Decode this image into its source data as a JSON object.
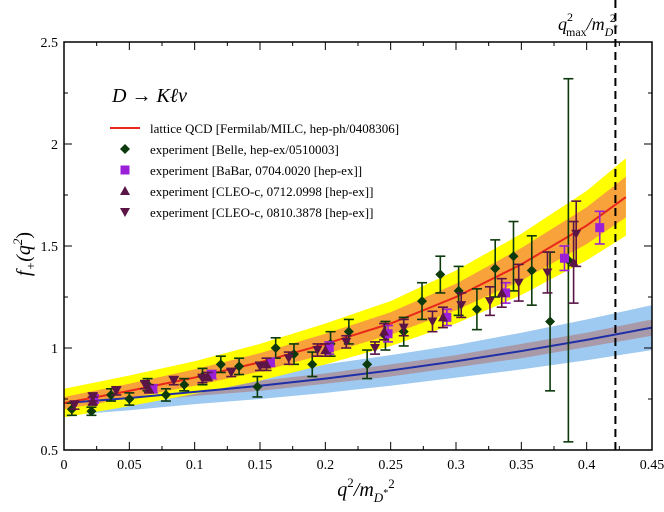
{
  "chart_data": {
    "type": "scatter",
    "title": "D → Kℓν",
    "xlim": [
      0,
      0.45
    ],
    "ylim": [
      0.5,
      2.5
    ],
    "x_ticks": [
      0,
      0.05,
      0.1,
      0.15,
      0.2,
      0.25,
      0.3,
      0.35,
      0.4,
      0.45
    ],
    "x_tick_labels": [
      "0",
      "0.05",
      "0.1",
      "0.15",
      "0.2",
      "0.25",
      "0.3",
      "0.35",
      "0.4",
      "0.45"
    ],
    "y_ticks": [
      0.5,
      1,
      1.5,
      2,
      2.5
    ],
    "y_tick_labels": [
      "0.5",
      "1",
      "1.5",
      "2",
      "2.5"
    ],
    "xlabel": {
      "main": "q",
      "sup": "2",
      "sep": "/m",
      "sub": "D",
      "subsup": "*",
      "sup2": "2"
    },
    "ylabel": {
      "main": "f",
      "sub": "+",
      "arg": "(q",
      "sup": "2",
      "close": ")"
    },
    "vline": {
      "x": 0.422,
      "label_main": "q",
      "label_sup": "2",
      "label_sub": "max",
      "label_sep": "/m",
      "label_sub2": "D",
      "label_subsup": "*",
      "label_sup2": "2"
    },
    "lattice": {
      "name": "lattice QCD [Fermilab/MILC, hep-ph/0408306]",
      "x": [
        0,
        0.05,
        0.1,
        0.15,
        0.2,
        0.25,
        0.3,
        0.35,
        0.4,
        0.43
      ],
      "y": [
        0.73,
        0.79,
        0.855,
        0.93,
        1.02,
        1.12,
        1.25,
        1.41,
        1.6,
        1.74
      ],
      "inner_band": [
        0.03,
        0.035,
        0.04,
        0.045,
        0.05,
        0.055,
        0.065,
        0.08,
        0.09,
        0.1
      ],
      "outer_band": [
        0.07,
        0.075,
        0.08,
        0.09,
        0.1,
        0.11,
        0.13,
        0.15,
        0.17,
        0.19
      ]
    },
    "blue_curve": {
      "x": [
        0,
        0.05,
        0.1,
        0.15,
        0.2,
        0.25,
        0.3,
        0.35,
        0.4,
        0.45
      ],
      "y": [
        0.73,
        0.755,
        0.785,
        0.815,
        0.85,
        0.89,
        0.935,
        0.985,
        1.04,
        1.1
      ],
      "inner_band": [
        0.02,
        0.02,
        0.02,
        0.025,
        0.025,
        0.03,
        0.03,
        0.035,
        0.035,
        0.04
      ],
      "outer_band": [
        0.06,
        0.06,
        0.06,
        0.065,
        0.07,
        0.075,
        0.08,
        0.09,
        0.1,
        0.11
      ]
    },
    "series": [
      {
        "name": "experiment [Belle, hep-ex/0510003]",
        "marker": "diamond",
        "color": "#0c3a0c",
        "points": [
          [
            0.006,
            0.7,
            0.03
          ],
          [
            0.021,
            0.69,
            0.02
          ],
          [
            0.036,
            0.77,
            0.03
          ],
          [
            0.05,
            0.75,
            0.03
          ],
          [
            0.064,
            0.82,
            0.03
          ],
          [
            0.078,
            0.77,
            0.03
          ],
          [
            0.092,
            0.82,
            0.03
          ],
          [
            0.106,
            0.86,
            0.04
          ],
          [
            0.12,
            0.92,
            0.04
          ],
          [
            0.134,
            0.91,
            0.04
          ],
          [
            0.148,
            0.81,
            0.05
          ],
          [
            0.162,
            1.0,
            0.05
          ],
          [
            0.176,
            0.97,
            0.05
          ],
          [
            0.19,
            0.92,
            0.06
          ],
          [
            0.204,
            1.02,
            0.06
          ],
          [
            0.218,
            1.08,
            0.06
          ],
          [
            0.232,
            0.92,
            0.07
          ],
          [
            0.246,
            1.06,
            0.07
          ],
          [
            0.26,
            1.08,
            0.07
          ],
          [
            0.274,
            1.23,
            0.09
          ],
          [
            0.288,
            1.36,
            0.09
          ],
          [
            0.302,
            1.28,
            0.12
          ],
          [
            0.316,
            1.19,
            0.1
          ],
          [
            0.33,
            1.39,
            0.14
          ],
          [
            0.344,
            1.45,
            0.17
          ],
          [
            0.358,
            1.38,
            0.17
          ],
          [
            0.372,
            1.13,
            0.34
          ],
          [
            0.386,
            1.43,
            0.89
          ]
        ]
      },
      {
        "name": "experiment [BaBar, 0704.0020 [hep-ex]]",
        "marker": "square",
        "color": "#9a1fd6",
        "points": [
          [
            0.023,
            0.75,
            0.02
          ],
          [
            0.068,
            0.8,
            0.02
          ],
          [
            0.113,
            0.87,
            0.02
          ],
          [
            0.158,
            0.93,
            0.02
          ],
          [
            0.203,
            1.0,
            0.03
          ],
          [
            0.248,
            1.07,
            0.04
          ],
          [
            0.293,
            1.15,
            0.04
          ],
          [
            0.338,
            1.27,
            0.05
          ],
          [
            0.383,
            1.44,
            0.06
          ],
          [
            0.41,
            1.59,
            0.08
          ]
        ]
      },
      {
        "name": "experiment [CLEO-c, 0712.0998 [hep-ex]]",
        "marker": "triangle-up",
        "color": "#5a1546",
        "points": [
          [
            0.022,
            0.74,
            0.02
          ],
          [
            0.065,
            0.8,
            0.02
          ],
          [
            0.11,
            0.86,
            0.02
          ],
          [
            0.155,
            0.92,
            0.03
          ],
          [
            0.2,
            0.99,
            0.03
          ],
          [
            0.245,
            1.08,
            0.04
          ],
          [
            0.29,
            1.15,
            0.05
          ],
          [
            0.335,
            1.27,
            0.07
          ],
          [
            0.39,
            1.42,
            0.2
          ]
        ]
      },
      {
        "name": "experiment [CLEO-c, 0810.3878 [hep-ex]]",
        "marker": "triangle-down",
        "color": "#5a1546",
        "points": [
          [
            0.008,
            0.72,
            0.02
          ],
          [
            0.022,
            0.76,
            0.02
          ],
          [
            0.04,
            0.79,
            0.02
          ],
          [
            0.062,
            0.82,
            0.02
          ],
          [
            0.084,
            0.84,
            0.02
          ],
          [
            0.106,
            0.85,
            0.02
          ],
          [
            0.128,
            0.88,
            0.02
          ],
          [
            0.15,
            0.91,
            0.02
          ],
          [
            0.172,
            0.95,
            0.03
          ],
          [
            0.194,
            0.99,
            0.03
          ],
          [
            0.216,
            1.03,
            0.03
          ],
          [
            0.238,
            1.0,
            0.03
          ],
          [
            0.26,
            1.1,
            0.04
          ],
          [
            0.282,
            1.13,
            0.05
          ],
          [
            0.304,
            1.21,
            0.06
          ],
          [
            0.326,
            1.23,
            0.07
          ],
          [
            0.348,
            1.32,
            0.09
          ],
          [
            0.37,
            1.37,
            0.1
          ],
          [
            0.392,
            1.56,
            0.16
          ]
        ]
      }
    ]
  }
}
